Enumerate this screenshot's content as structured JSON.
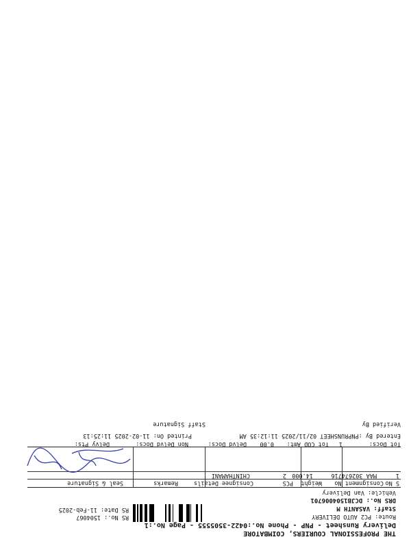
{
  "header": {
    "company": "THE PROFESSIONAL COURIERS, COIMBATORE",
    "subtitle": "Delivery Runsheet - PNP - Phone No.:0422-3505555 - Page No.:1",
    "route": "Route: PC2 AUTO DELIVERY",
    "staff": "Staff: VASANTH M",
    "drs_no": "DRS No.: DCJB1504006701",
    "vehicle": "Vehicle: Van Delivery",
    "rs_no": "RS No.: 1504067",
    "rs_date": "RS Date: 11-Feb-2025"
  },
  "table": {
    "columns": [
      "S No",
      "Consignment No",
      "Weight",
      "PCS",
      "Consignee Details",
      "Remarks",
      "Seal & Signature"
    ],
    "rows": [
      [
        "1",
        "MAA 302674716",
        "14.000",
        "2",
        "CHINTHAMANI"
      ]
    ]
  },
  "totals": {
    "tot_docs_label": "Tot Docs:",
    "tot_docs": "1",
    "tot_cod_label": "Tot COD Amt:",
    "tot_cod": "0.00",
    "delvd_docs": "Delvd Docs:",
    "non_delvd_docs": "Non Delvd Docs:",
    "delvy_pts": "Delvy Pts:"
  },
  "footer": {
    "entered_by": "Entered By :PNPRUNSHEET 02/11/2025 11:12:35 AM",
    "printed_on": "Printed On: 11-02-2025 11:25:13",
    "staff_signature": "Staff Signature",
    "verified_by": "Verified By"
  }
}
